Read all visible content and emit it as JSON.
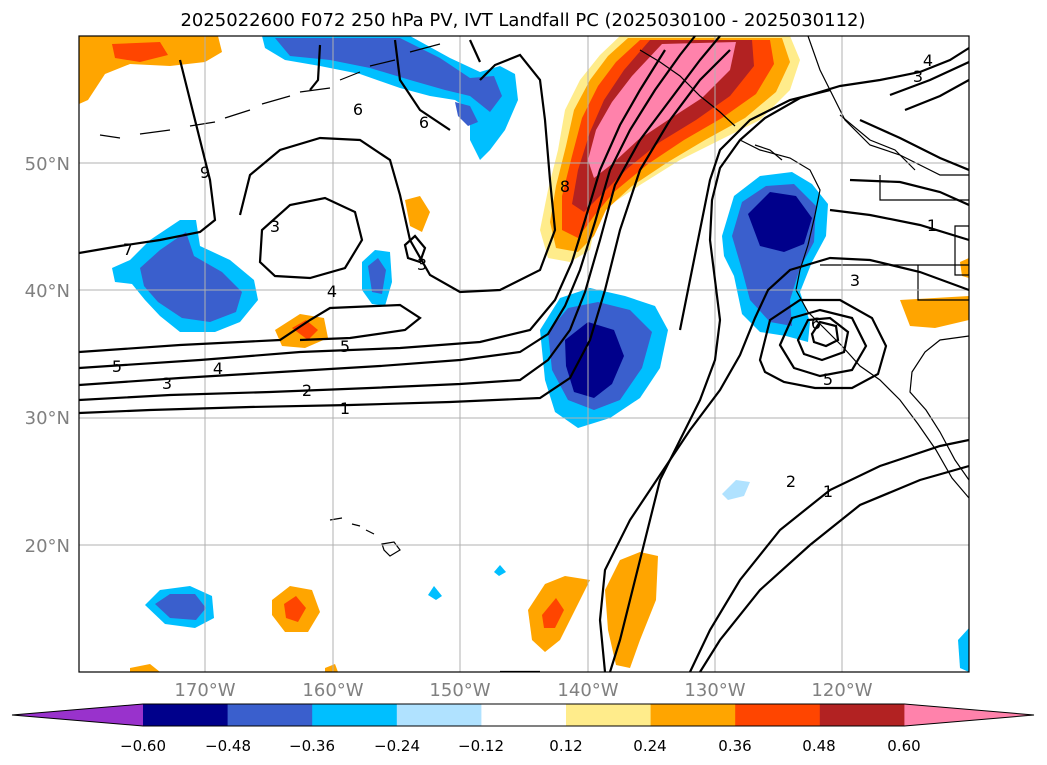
{
  "title": "2025022600 F072 250 hPa PV, IVT Landfall PC (2025030100 - 2025030112)",
  "lon_ticks": [
    "170°W",
    "160°W",
    "150°W",
    "140°W",
    "130°W",
    "120°W"
  ],
  "lat_ticks": [
    "50°N",
    "40°N",
    "30°N",
    "20°N"
  ],
  "colorbar": {
    "tick_labels": [
      "−0.60",
      "−0.48",
      "−0.36",
      "−0.24",
      "−0.12",
      "0.12",
      "0.24",
      "0.36",
      "0.48",
      "0.60"
    ],
    "colors": [
      "#9932cc",
      "#00008b",
      "#3a5fcd",
      "#00bfff",
      "#b0e2ff",
      "#ffffff",
      "#ffec8b",
      "#ffa500",
      "#ff4500",
      "#b22222",
      "#ff82ab"
    ]
  },
  "contour_labels": [
    "7",
    "6",
    "9",
    "3",
    "4",
    "5",
    "3",
    "4",
    "3",
    "2",
    "1",
    "5",
    "6",
    "8",
    "3",
    "4",
    "1",
    "3",
    "6",
    "5",
    "2",
    "1"
  ]
}
